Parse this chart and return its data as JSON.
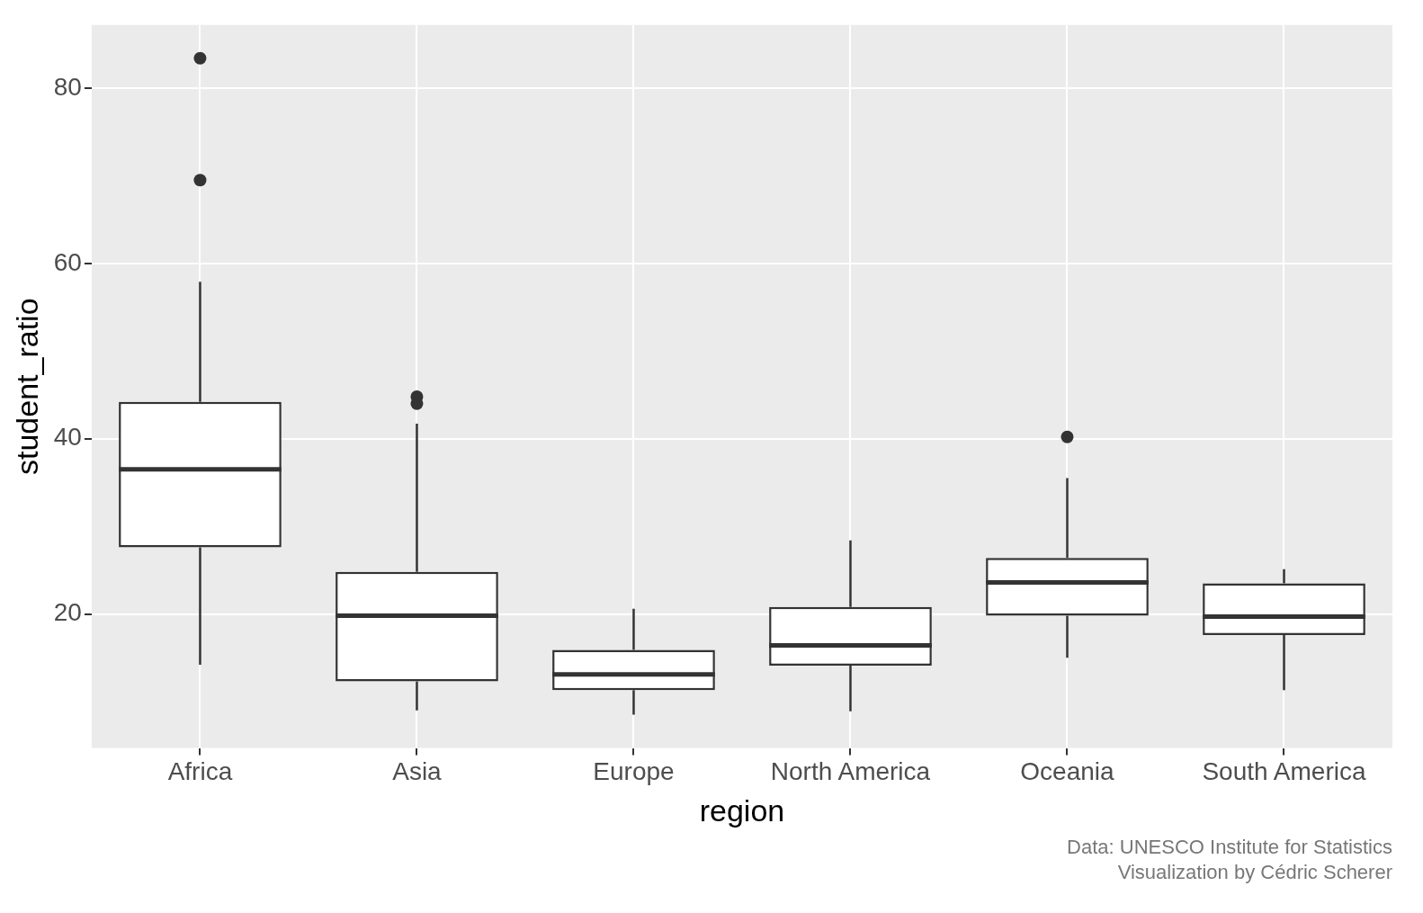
{
  "chart_data": {
    "type": "box",
    "xlabel": "region",
    "ylabel": "student_ratio",
    "categories": [
      "Africa",
      "Asia",
      "Europe",
      "North America",
      "Oceania",
      "South America"
    ],
    "boxes": [
      {
        "low": 14.2,
        "q1": 27.6,
        "median": 36.5,
        "q3": 44.2,
        "high": 57.9,
        "outliers": [
          83.4,
          69.5
        ]
      },
      {
        "low": 9.0,
        "q1": 12.3,
        "median": 19.8,
        "q3": 24.8,
        "high": 41.7,
        "outliers": [
          44.8,
          44.0
        ]
      },
      {
        "low": 8.5,
        "q1": 11.3,
        "median": 13.1,
        "q3": 15.9,
        "high": 20.6
      },
      {
        "low": 8.9,
        "q1": 14.1,
        "median": 16.4,
        "q3": 20.8,
        "high": 28.4
      },
      {
        "low": 15.0,
        "q1": 19.8,
        "median": 23.6,
        "q3": 26.4,
        "high": 35.5,
        "outliers": [
          40.2
        ]
      },
      {
        "low": 11.3,
        "q1": 17.6,
        "median": 19.7,
        "q3": 23.5,
        "high": 25.1
      }
    ],
    "ylim": [
      4.7,
      87.2
    ],
    "yticks": [
      20,
      40,
      60,
      80
    ],
    "grid": true,
    "legend": false,
    "annotations": [
      "Data: UNESCO Institute for Statistics",
      "Visualization by Cédric Scherer"
    ]
  }
}
